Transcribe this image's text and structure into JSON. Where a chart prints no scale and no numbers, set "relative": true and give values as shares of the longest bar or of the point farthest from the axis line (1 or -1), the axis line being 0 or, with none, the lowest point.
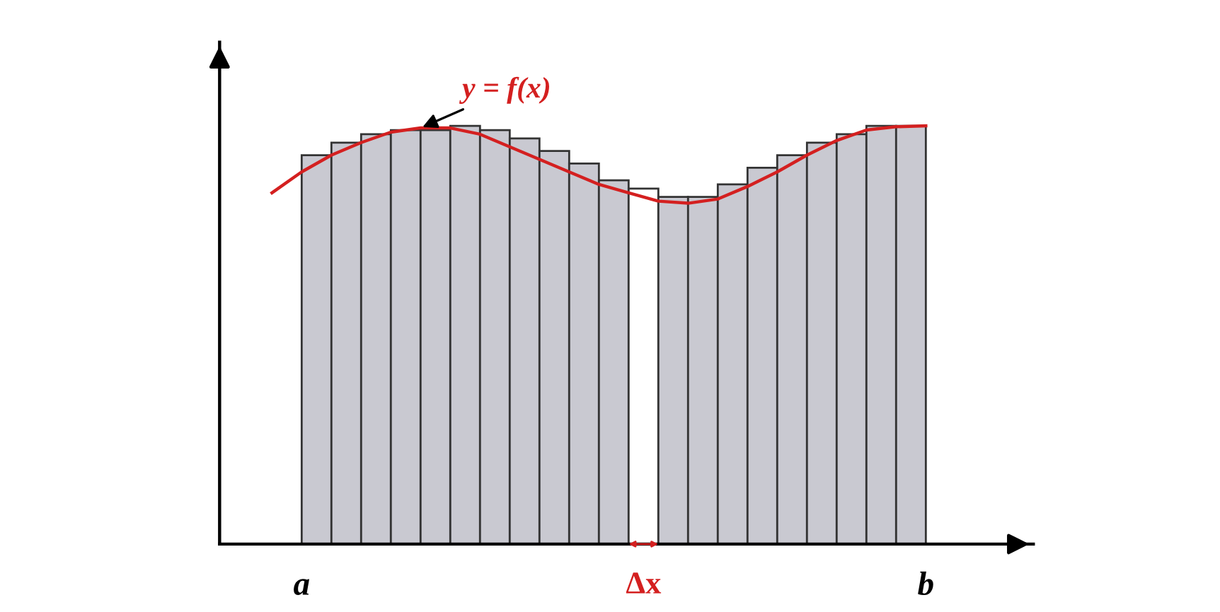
{
  "chart_data": [
    {
      "type": "bar",
      "relative": true,
      "categories": [
        null,
        null,
        null,
        null,
        null,
        null,
        null,
        null,
        null,
        null,
        null,
        null,
        null,
        null,
        null,
        null,
        null,
        null,
        null,
        null,
        null
      ],
      "colors": [
        "#c9c9d1",
        "#c9c9d1",
        "#c9c9d1",
        "#c9c9d1",
        "#c9c9d1",
        "#c9c9d1",
        "#c9c9d1",
        "#c9c9d1",
        "#c9c9d1",
        "#c9c9d1",
        "#c9c9d1",
        "#ffffff",
        "#c9c9d1",
        "#c9c9d1",
        "#c9c9d1",
        "#c9c9d1",
        "#c9c9d1",
        "#c9c9d1",
        "#c9c9d1",
        "#c9c9d1",
        "#c9c9d1"
      ],
      "values": [
        0.93,
        0.96,
        0.98,
        0.99,
        0.99,
        1.0,
        0.99,
        0.97,
        0.94,
        0.91,
        0.87,
        0.85,
        0.83,
        0.83,
        0.86,
        0.9,
        0.93,
        0.96,
        0.98,
        1.0,
        1.0
      ],
      "annotations": [
        "a",
        "Δx",
        "b"
      ]
    },
    {
      "type": "line",
      "relative": true,
      "color": "#d42020",
      "categories": [
        null,
        null,
        null,
        null,
        null,
        null,
        null,
        null,
        null,
        null,
        null,
        null,
        null,
        null,
        null,
        null,
        null,
        null,
        null,
        null,
        null,
        null,
        null
      ],
      "values": [
        0.84,
        0.89,
        0.93,
        0.96,
        0.985,
        0.995,
        0.995,
        0.98,
        0.95,
        0.92,
        0.89,
        0.86,
        0.84,
        0.82,
        0.815,
        0.825,
        0.855,
        0.89,
        0.93,
        0.965,
        0.99,
        0.998,
        1.0
      ],
      "annotations": [
        "y = f(x)"
      ]
    }
  ]
}
